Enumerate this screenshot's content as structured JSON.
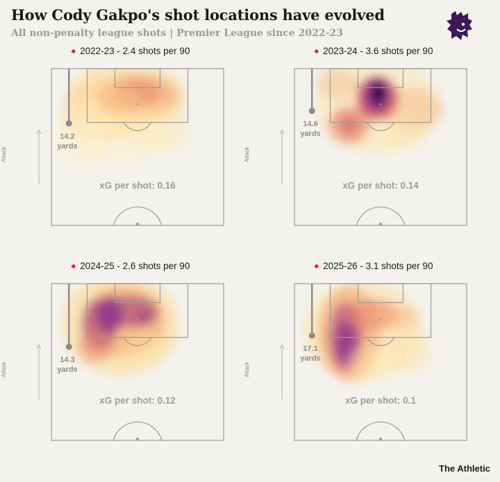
{
  "header": {
    "title": "How Cody Gakpo's shot locations have evolved",
    "subtitle": "All non-penalty league shots | Premier League since 2022-23"
  },
  "footer": {
    "credit": "The Athletic"
  },
  "colors": {
    "background": "#f3f2ee",
    "heat_low": "#fff3b0",
    "heat_mid": "#e8836a",
    "heat_high": "#8a2f8c",
    "heat_peak": "#1a0533",
    "league_logo": "#3d195b"
  },
  "chart_data": [
    {
      "type": "heatmap",
      "season": "2022-23",
      "title": "2022-23 - 2.4 shots per 90",
      "attack_label": "Attack",
      "avg_distance_value": "14.2",
      "avg_distance_unit": "yards",
      "xg_label": "xG per shot: 0.16",
      "shots_per_90": 2.4,
      "xg_per_shot": 0.16,
      "avg_distance_yards": 14.2
    },
    {
      "type": "heatmap",
      "season": "2023-24",
      "title": "2023-24 - 3.6 shots per 90",
      "attack_label": "Attack",
      "avg_distance_value": "14.6",
      "avg_distance_unit": "yards",
      "xg_label": "xG per shot: 0.14",
      "shots_per_90": 3.6,
      "xg_per_shot": 0.14,
      "avg_distance_yards": 14.6
    },
    {
      "type": "heatmap",
      "season": "2024-25",
      "title": "2024-25 - 2.6 shots per 90",
      "attack_label": "Attack",
      "avg_distance_value": "14.3",
      "avg_distance_unit": "yards",
      "xg_label": "xG per shot: 0.12",
      "shots_per_90": 2.6,
      "xg_per_shot": 0.12,
      "avg_distance_yards": 14.3
    },
    {
      "type": "heatmap",
      "season": "2025-26",
      "title": "2025-26 - 3.1 shots per 90",
      "attack_label": "Attack",
      "avg_distance_value": "17.1",
      "avg_distance_unit": "yards",
      "xg_label": "xG per shot: 0.1",
      "shots_per_90": 3.1,
      "xg_per_shot": 0.1,
      "avg_distance_yards": 17.1
    }
  ]
}
